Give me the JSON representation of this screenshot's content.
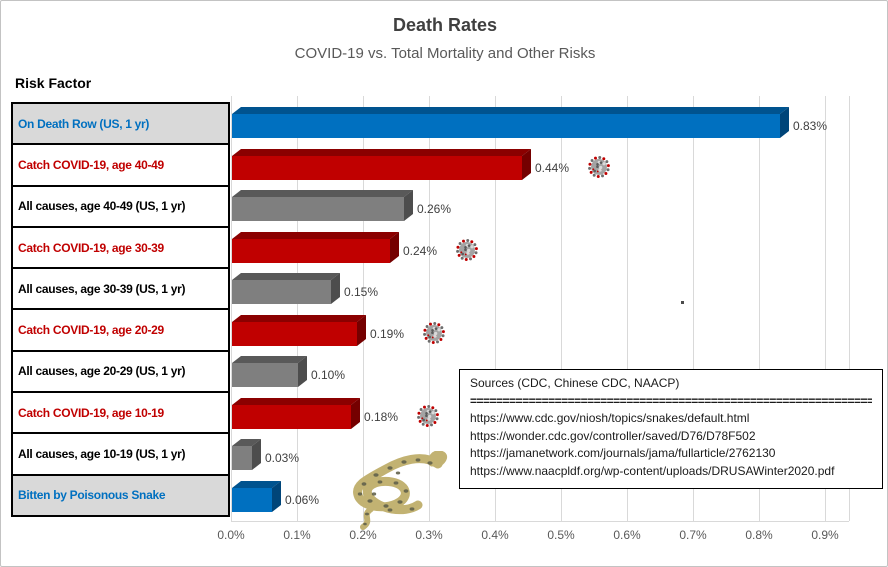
{
  "header": {
    "title": "Death Rates",
    "subtitle": "COVID-19 vs. Total Mortality and Other Risks",
    "axis_header": "Risk Factor"
  },
  "colors": {
    "title": "#404040",
    "subtitle": "#595959",
    "grid": "#d9d9d9",
    "highlight_cell_bg": "#d9d9d9",
    "label_blue": "#0070C0",
    "label_red": "#C00000",
    "label_black": "#000000",
    "bar_blue_front": "#0070C0",
    "bar_blue_top": "#00538F",
    "bar_blue_side": "#004579",
    "bar_red_front": "#C00000",
    "bar_red_top": "#8B0000",
    "bar_red_side": "#750000",
    "bar_gray_front": "#7F7F7F",
    "bar_gray_top": "#595959",
    "bar_gray_side": "#4D4D4D"
  },
  "icons": {
    "virus": "covid-virus-icon",
    "snake": "coiled-snake-icon"
  },
  "chart_data": {
    "type": "bar",
    "orientation": "horizontal",
    "title": "Death Rates",
    "subtitle": "COVID-19 vs. Total Mortality and Other Risks",
    "xlabel": "",
    "ylabel": "Risk Factor",
    "xlim": [
      0,
      0.95
    ],
    "unit": "%",
    "grid": true,
    "x_ticks": [
      "0.0%",
      "0.1%",
      "0.2%",
      "0.3%",
      "0.4%",
      "0.5%",
      "0.6%",
      "0.7%",
      "0.8%",
      "0.9%"
    ],
    "categories": [
      "On Death Row (US, 1 yr)",
      "Catch COVID-19, age 40-49",
      "All causes, age 40-49 (US, 1 yr)",
      "Catch COVID-19, age 30-39",
      "All causes, age 30-39 (US, 1 yr)",
      "Catch COVID-19, age 20-29",
      "All causes, age 20-29 (US, 1 yr)",
      "Catch COVID-19, age 10-19",
      "All causes, age 10-19 (US, 1 yr)",
      "Bitten by Poisonous Snake"
    ],
    "values": [
      0.83,
      0.44,
      0.26,
      0.24,
      0.15,
      0.19,
      0.1,
      0.18,
      0.03,
      0.06
    ],
    "rows": [
      {
        "label": "On Death Row (US, 1 yr)",
        "value": 0.83,
        "display": "0.83%",
        "bar": "blue",
        "label_color": "blue",
        "highlight": true,
        "covid": false
      },
      {
        "label": "Catch COVID-19, age 40-49",
        "value": 0.44,
        "display": "0.44%",
        "bar": "red",
        "label_color": "red",
        "highlight": false,
        "covid": true
      },
      {
        "label": "All causes, age 40-49 (US, 1 yr)",
        "value": 0.26,
        "display": "0.26%",
        "bar": "gray",
        "label_color": "black",
        "highlight": false,
        "covid": false
      },
      {
        "label": "Catch COVID-19, age 30-39",
        "value": 0.24,
        "display": "0.24%",
        "bar": "red",
        "label_color": "red",
        "highlight": false,
        "covid": true
      },
      {
        "label": "All causes, age 30-39 (US, 1 yr)",
        "value": 0.15,
        "display": "0.15%",
        "bar": "gray",
        "label_color": "black",
        "highlight": false,
        "covid": false
      },
      {
        "label": "Catch COVID-19, age 20-29",
        "value": 0.19,
        "display": "0.19%",
        "bar": "red",
        "label_color": "red",
        "highlight": false,
        "covid": true
      },
      {
        "label": "All causes, age 20-29 (US, 1 yr)",
        "value": 0.1,
        "display": "0.10%",
        "bar": "gray",
        "label_color": "black",
        "highlight": false,
        "covid": false
      },
      {
        "label": "Catch COVID-19, age 10-19",
        "value": 0.18,
        "display": "0.18%",
        "bar": "red",
        "label_color": "red",
        "highlight": false,
        "covid": true
      },
      {
        "label": "All causes, age 10-19 (US, 1 yr)",
        "value": 0.03,
        "display": "0.03%",
        "bar": "gray",
        "label_color": "black",
        "highlight": false,
        "covid": false
      },
      {
        "label": "Bitten by Poisonous Snake",
        "value": 0.06,
        "display": "0.06%",
        "bar": "blue",
        "label_color": "blue",
        "highlight": true,
        "covid": false
      }
    ]
  },
  "sources": {
    "title": "Sources (CDC, Chinese CDC, NAACP)",
    "divider": "================================================================",
    "links": [
      "https://www.cdc.gov/niosh/topics/snakes/default.html",
      "https://wonder.cdc.gov/controller/saved/D76/D78F502",
      "https://jamanetwork.com/journals/jama/fullarticle/2762130",
      "https://www.naacpldf.org/wp-content/uploads/DRUSAWinter2020.pdf"
    ]
  }
}
